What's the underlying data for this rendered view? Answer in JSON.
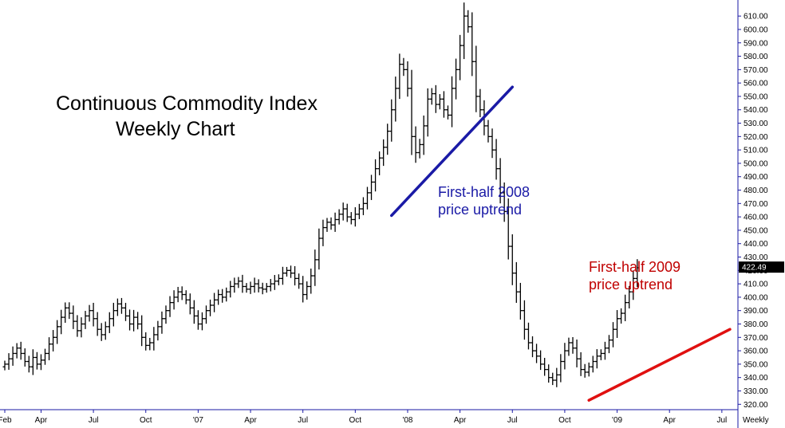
{
  "title_line1": "Continuous Commodity Index",
  "title_line2": "Weekly Chart",
  "annotation_2008_line1": "First-half 2008",
  "annotation_2008_line2": "price uptrend",
  "annotation_2009_line1": "First-half 2009",
  "annotation_2009_line2": "price uptrend",
  "period_label": "Weekly",
  "last_price_label": "422.49",
  "colors": {
    "bars": "#000000",
    "uptrend_2008": "#1a1aa6",
    "uptrend_2009": "#e01010",
    "axis": "#1a1aa6",
    "last_price_bg": "#000000"
  },
  "chart_data": {
    "type": "ohlc",
    "ylim": [
      316,
      622
    ],
    "y_ticks": [
      320,
      330,
      340,
      350,
      360,
      370,
      380,
      390,
      400,
      410,
      420,
      430,
      440,
      450,
      460,
      470,
      480,
      490,
      500,
      510,
      520,
      530,
      540,
      550,
      560,
      570,
      580,
      590,
      600,
      610
    ],
    "y_tick_labels": [
      "320.00",
      "330.00",
      "340.00",
      "350.00",
      "360.00",
      "370.00",
      "380.00",
      "390.00",
      "400.00",
      "410.00",
      "420.00",
      "430.00",
      "440.00",
      "450.00",
      "460.00",
      "470.00",
      "480.00",
      "490.00",
      "500.00",
      "510.00",
      "520.00",
      "530.00",
      "540.00",
      "550.00",
      "560.00",
      "570.00",
      "580.00",
      "590.00",
      "600.00",
      "610.00"
    ],
    "x_labels": [
      "Feb",
      "Apr",
      "Jul",
      "Oct",
      "'07",
      "Apr",
      "Jul",
      "Oct",
      "'08",
      "Apr",
      "Jul",
      "Oct",
      "'09",
      "Apr",
      "Jul"
    ],
    "x_label_week": [
      0,
      9,
      22,
      35,
      48,
      61,
      74,
      87,
      100,
      113,
      126,
      139,
      152,
      165,
      178
    ],
    "last_price": 422.49,
    "closes": [
      350,
      354,
      358,
      362,
      358,
      352,
      348,
      355,
      350,
      353,
      358,
      365,
      370,
      378,
      385,
      392,
      388,
      382,
      375,
      380,
      386,
      390,
      384,
      376,
      372,
      378,
      384,
      390,
      395,
      392,
      386,
      380,
      385,
      380,
      370,
      364,
      366,
      372,
      378,
      384,
      390,
      396,
      400,
      404,
      402,
      398,
      392,
      386,
      380,
      384,
      390,
      394,
      398,
      402,
      400,
      404,
      408,
      410,
      412,
      408,
      406,
      408,
      410,
      407,
      406,
      408,
      410,
      412,
      414,
      418,
      420,
      418,
      414,
      410,
      402,
      408,
      416,
      428,
      444,
      452,
      456,
      454,
      458,
      462,
      466,
      460,
      458,
      462,
      466,
      470,
      478,
      486,
      496,
      504,
      512,
      524,
      540,
      556,
      574,
      570,
      556,
      520,
      508,
      514,
      528,
      548,
      552,
      544,
      548,
      540,
      536,
      556,
      570,
      588,
      610,
      602,
      576,
      550,
      540,
      528,
      520,
      510,
      496,
      478,
      464,
      438,
      418,
      404,
      390,
      376,
      366,
      360,
      356,
      350,
      346,
      340,
      338,
      342,
      352,
      360,
      366,
      362,
      354,
      346,
      344,
      348,
      352,
      356,
      358,
      362,
      368,
      376,
      384,
      388,
      396,
      404,
      414,
      422
    ],
    "trendlines": [
      {
        "name": "First-half 2008 price uptrend",
        "from": [
          96,
          461
        ],
        "to": [
          126,
          557
        ]
      },
      {
        "name": "First-half 2009 price uptrend",
        "from": [
          145,
          323
        ],
        "to": [
          180,
          376
        ]
      }
    ]
  }
}
